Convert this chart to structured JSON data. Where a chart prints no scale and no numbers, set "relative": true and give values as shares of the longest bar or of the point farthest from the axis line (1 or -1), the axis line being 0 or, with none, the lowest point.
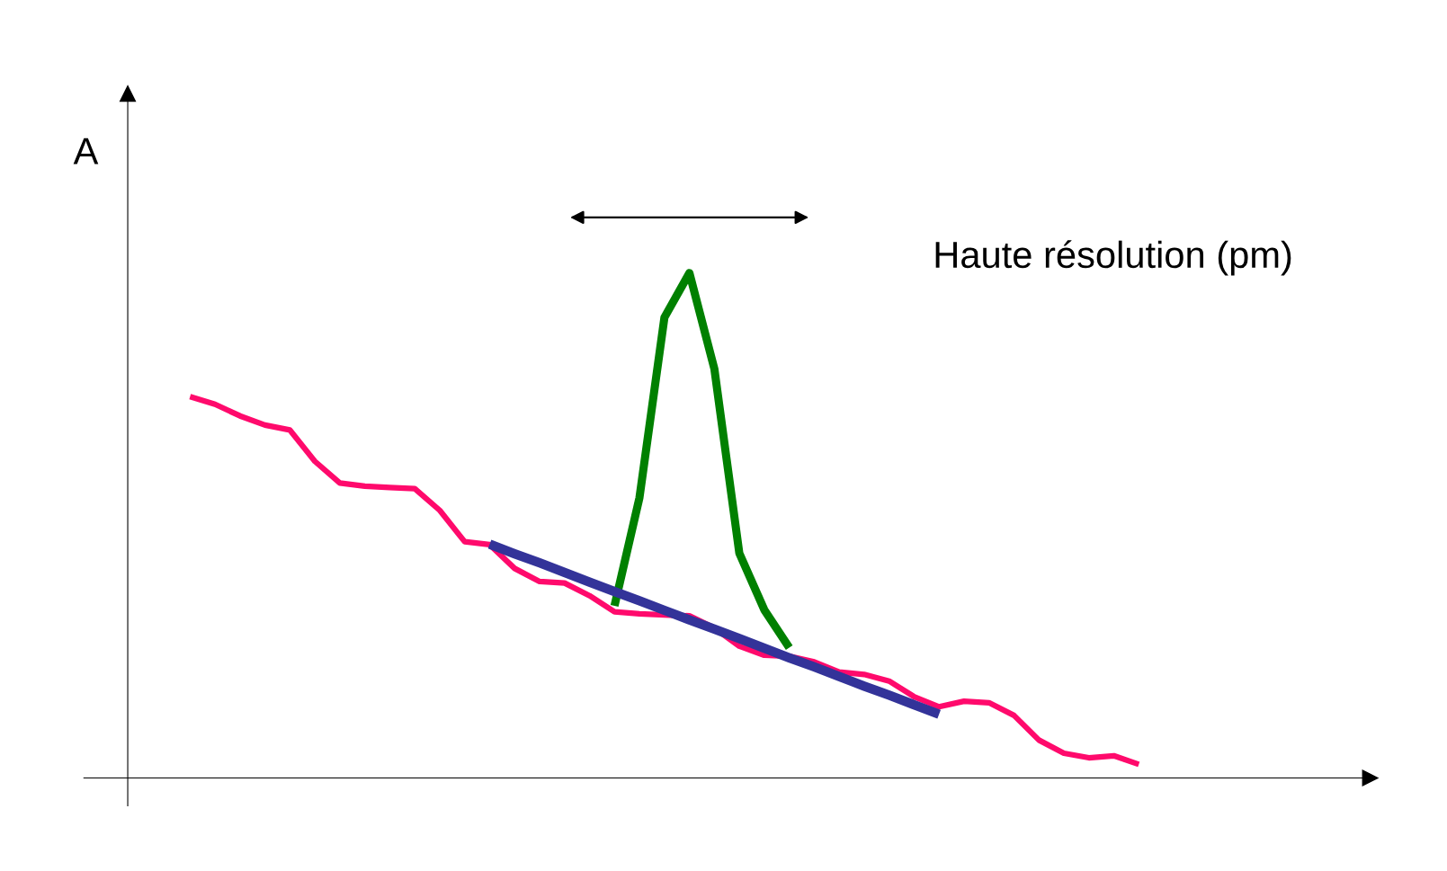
{
  "chart_data": {
    "type": "line",
    "relative": true,
    "ylabel": "A",
    "annotations": [
      "Haute résolution (pm)"
    ],
    "legend": false,
    "marker": "none",
    "line_style": "solid",
    "categories": [
      null,
      null,
      null,
      null,
      null,
      null,
      null,
      null,
      null,
      null,
      null,
      null,
      null,
      null,
      null,
      null,
      null,
      null,
      null,
      null,
      null,
      null,
      null,
      null,
      null,
      null,
      null,
      null,
      null,
      null,
      null,
      null,
      null,
      null,
      null,
      null,
      null,
      null,
      null
    ],
    "series": [
      {
        "color": "#ff0a6c",
        "values": [
          0.755,
          0.74,
          0.717,
          0.699,
          0.689,
          0.627,
          0.584,
          0.578,
          0.575,
          0.573,
          0.53,
          0.468,
          0.462,
          0.415,
          0.389,
          0.386,
          0.361,
          0.329,
          0.325,
          0.323,
          0.321,
          0.297,
          0.261,
          0.243,
          0.241,
          0.23,
          0.21,
          0.205,
          0.192,
          0.161,
          0.141,
          0.152,
          0.149,
          0.124,
          0.075,
          0.049,
          0.04,
          0.044,
          0.027
        ]
      },
      {
        "color": "#008000",
        "values": [
          null,
          null,
          null,
          null,
          null,
          null,
          null,
          null,
          null,
          null,
          null,
          null,
          null,
          null,
          null,
          null,
          null,
          0.341,
          0.555,
          0.912,
          1,
          0.81,
          0.445,
          0.333,
          0.258,
          null,
          null,
          null,
          null,
          null,
          null,
          null,
          null,
          null,
          null,
          null,
          null,
          null,
          null
        ]
      },
      {
        "color": "#333399",
        "values": [
          null,
          null,
          null,
          null,
          null,
          null,
          null,
          null,
          null,
          null,
          null,
          null,
          0.463,
          0.444,
          0.426,
          0.407,
          0.388,
          0.369,
          0.351,
          0.332,
          0.313,
          0.295,
          0.276,
          0.257,
          0.238,
          0.22,
          0.201,
          0.182,
          0.164,
          0.145,
          0.126,
          null,
          null,
          null,
          null,
          null,
          null,
          null,
          null
        ]
      }
    ]
  }
}
